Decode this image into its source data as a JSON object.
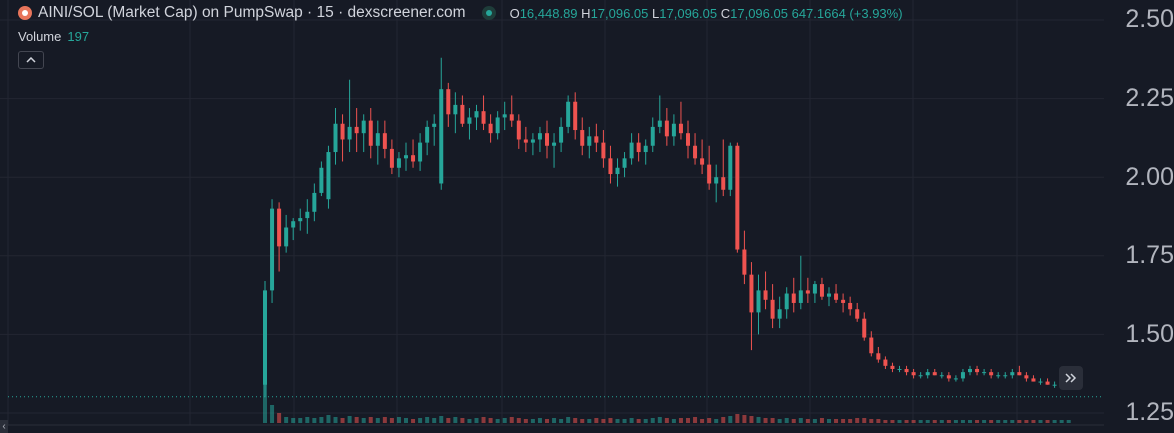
{
  "header": {
    "title": "AINI/SOL (Market Cap) on PumpSwap · 15 · dexscreener.com",
    "ohlc": {
      "o_label": "O",
      "o_value": "16,448.89",
      "h_label": "H",
      "h_value": "17,096.05",
      "l_label": "L",
      "l_value": "17,096.05",
      "c_label": "C",
      "c_value": "17,096.05",
      "change": "647.1664 (+3.93%)"
    }
  },
  "volume": {
    "label": "Volume",
    "value": "197"
  },
  "price_scale": {
    "labels": [
      "2.50",
      "2.25",
      "2.00",
      "1.75",
      "1.50",
      "1.25"
    ],
    "values": [
      2.5,
      2.25,
      2.0,
      1.75,
      1.5,
      1.25
    ]
  },
  "colors": {
    "up": "#26a69a",
    "down": "#ef5350",
    "background": "#161a25",
    "grid": "#232632"
  },
  "icons": {
    "collapse": "chevron-up-icon",
    "scroll": "double-chevron-right-icon",
    "logo": "token-logo-icon"
  },
  "chart_data": {
    "type": "candlestick",
    "y_range": [
      1.25,
      2.5
    ],
    "last_price": 1.34,
    "candles": [
      [
        1.34,
        1.67,
        1.3,
        1.64
      ],
      [
        1.64,
        1.93,
        1.6,
        1.9
      ],
      [
        1.9,
        1.92,
        1.7,
        1.78
      ],
      [
        1.78,
        1.88,
        1.76,
        1.84
      ],
      [
        1.84,
        1.87,
        1.8,
        1.86
      ],
      [
        1.86,
        1.9,
        1.83,
        1.87
      ],
      [
        1.87,
        1.93,
        1.82,
        1.89
      ],
      [
        1.89,
        1.98,
        1.86,
        1.95
      ],
      [
        1.95,
        2.05,
        1.94,
        2.03
      ],
      [
        1.93,
        2.1,
        1.9,
        2.08
      ],
      [
        2.08,
        2.22,
        2.04,
        2.17
      ],
      [
        2.17,
        2.2,
        2.05,
        2.12
      ],
      [
        2.12,
        2.31,
        2.08,
        2.16
      ],
      [
        2.16,
        2.22,
        2.08,
        2.14
      ],
      [
        2.14,
        2.2,
        2.08,
        2.18
      ],
      [
        2.18,
        2.22,
        2.06,
        2.1
      ],
      [
        2.1,
        2.18,
        2.04,
        2.14
      ],
      [
        2.14,
        2.18,
        2.06,
        2.09
      ],
      [
        2.09,
        2.12,
        2.01,
        2.03
      ],
      [
        2.03,
        2.08,
        2.0,
        2.06
      ],
      [
        2.06,
        2.11,
        2.02,
        2.07
      ],
      [
        2.07,
        2.12,
        2.03,
        2.05
      ],
      [
        2.05,
        2.14,
        2.02,
        2.11
      ],
      [
        2.11,
        2.18,
        2.07,
        2.16
      ],
      [
        2.16,
        2.2,
        2.1,
        2.17
      ],
      [
        1.98,
        2.38,
        1.96,
        2.28
      ],
      [
        2.28,
        2.3,
        2.16,
        2.2
      ],
      [
        2.2,
        2.27,
        2.14,
        2.23
      ],
      [
        2.23,
        2.26,
        2.16,
        2.17
      ],
      [
        2.17,
        2.22,
        2.12,
        2.19
      ],
      [
        2.19,
        2.23,
        2.15,
        2.21
      ],
      [
        2.21,
        2.26,
        2.15,
        2.17
      ],
      [
        2.17,
        2.2,
        2.11,
        2.14
      ],
      [
        2.14,
        2.21,
        2.12,
        2.19
      ],
      [
        2.19,
        2.24,
        2.15,
        2.2
      ],
      [
        2.2,
        2.26,
        2.16,
        2.18
      ],
      [
        2.18,
        2.2,
        2.09,
        2.12
      ],
      [
        2.12,
        2.16,
        2.08,
        2.11
      ],
      [
        2.11,
        2.14,
        2.07,
        2.12
      ],
      [
        2.12,
        2.16,
        2.08,
        2.14
      ],
      [
        2.14,
        2.18,
        2.06,
        2.1
      ],
      [
        2.1,
        2.14,
        2.03,
        2.11
      ],
      [
        2.11,
        2.19,
        2.08,
        2.16
      ],
      [
        2.16,
        2.26,
        2.14,
        2.24
      ],
      [
        2.24,
        2.27,
        2.12,
        2.15
      ],
      [
        2.15,
        2.19,
        2.07,
        2.1
      ],
      [
        2.1,
        2.16,
        2.06,
        2.13
      ],
      [
        2.13,
        2.17,
        2.08,
        2.11
      ],
      [
        2.11,
        2.15,
        2.03,
        2.06
      ],
      [
        2.06,
        2.1,
        1.98,
        2.01
      ],
      [
        2.01,
        2.06,
        1.97,
        2.03
      ],
      [
        2.03,
        2.08,
        2.0,
        2.06
      ],
      [
        2.06,
        2.14,
        2.04,
        2.11
      ],
      [
        2.11,
        2.14,
        2.05,
        2.08
      ],
      [
        2.08,
        2.12,
        2.04,
        2.1
      ],
      [
        2.1,
        2.19,
        2.08,
        2.16
      ],
      [
        2.16,
        2.26,
        2.14,
        2.18
      ],
      [
        2.18,
        2.22,
        2.1,
        2.13
      ],
      [
        2.13,
        2.2,
        2.1,
        2.17
      ],
      [
        2.17,
        2.24,
        2.12,
        2.14
      ],
      [
        2.14,
        2.18,
        2.06,
        2.1
      ],
      [
        2.1,
        2.14,
        2.04,
        2.06
      ],
      [
        2.06,
        2.12,
        2.01,
        2.04
      ],
      [
        2.04,
        2.1,
        1.96,
        1.98
      ],
      [
        1.98,
        2.04,
        1.92,
        2.0
      ],
      [
        2.0,
        2.12,
        1.94,
        1.96
      ],
      [
        1.96,
        2.11,
        1.94,
        2.1
      ],
      [
        2.1,
        2.11,
        1.76,
        1.77
      ],
      [
        1.77,
        1.83,
        1.66,
        1.69
      ],
      [
        1.69,
        1.73,
        1.45,
        1.57
      ],
      [
        1.57,
        1.69,
        1.5,
        1.64
      ],
      [
        1.64,
        1.7,
        1.58,
        1.61
      ],
      [
        1.61,
        1.66,
        1.52,
        1.55
      ],
      [
        1.55,
        1.62,
        1.52,
        1.58
      ],
      [
        1.58,
        1.65,
        1.55,
        1.63
      ],
      [
        1.63,
        1.68,
        1.57,
        1.6
      ],
      [
        1.6,
        1.75,
        1.58,
        1.64
      ],
      [
        1.64,
        1.68,
        1.6,
        1.63
      ],
      [
        1.63,
        1.67,
        1.6,
        1.66
      ],
      [
        1.66,
        1.68,
        1.61,
        1.62
      ],
      [
        1.62,
        1.65,
        1.59,
        1.63
      ],
      [
        1.63,
        1.66,
        1.6,
        1.61
      ],
      [
        1.61,
        1.63,
        1.57,
        1.6
      ],
      [
        1.6,
        1.62,
        1.56,
        1.58
      ],
      [
        1.58,
        1.6,
        1.54,
        1.55
      ],
      [
        1.55,
        1.57,
        1.48,
        1.49
      ],
      [
        1.49,
        1.51,
        1.43,
        1.44
      ],
      [
        1.44,
        1.46,
        1.41,
        1.42
      ],
      [
        1.42,
        1.43,
        1.39,
        1.4
      ],
      [
        1.4,
        1.41,
        1.38,
        1.39
      ],
      [
        1.39,
        1.4,
        1.38,
        1.39
      ],
      [
        1.39,
        1.4,
        1.37,
        1.38
      ],
      [
        1.38,
        1.39,
        1.36,
        1.37
      ],
      [
        1.37,
        1.38,
        1.36,
        1.37
      ],
      [
        1.37,
        1.39,
        1.36,
        1.38
      ],
      [
        1.38,
        1.39,
        1.37,
        1.37
      ],
      [
        1.37,
        1.38,
        1.36,
        1.37
      ],
      [
        1.37,
        1.38,
        1.35,
        1.36
      ],
      [
        1.36,
        1.37,
        1.35,
        1.36
      ],
      [
        1.36,
        1.39,
        1.35,
        1.38
      ],
      [
        1.38,
        1.4,
        1.37,
        1.39
      ],
      [
        1.39,
        1.4,
        1.37,
        1.38
      ],
      [
        1.38,
        1.39,
        1.37,
        1.38
      ],
      [
        1.38,
        1.39,
        1.36,
        1.37
      ],
      [
        1.37,
        1.38,
        1.36,
        1.37
      ],
      [
        1.37,
        1.38,
        1.36,
        1.37
      ],
      [
        1.37,
        1.39,
        1.36,
        1.38
      ],
      [
        1.38,
        1.4,
        1.37,
        1.37
      ],
      [
        1.37,
        1.38,
        1.35,
        1.36
      ],
      [
        1.36,
        1.37,
        1.35,
        1.35
      ],
      [
        1.35,
        1.36,
        1.34,
        1.35
      ],
      [
        1.35,
        1.36,
        1.34,
        1.34
      ],
      [
        1.34,
        1.35,
        1.33,
        1.34
      ],
      [
        1.34,
        1.35,
        1.33,
        1.34
      ],
      [
        1.34,
        1.35,
        1.33,
        1.34
      ]
    ],
    "volumes": [
      60,
      18,
      10,
      6,
      5,
      5,
      6,
      5,
      6,
      8,
      6,
      5,
      7,
      6,
      5,
      6,
      5,
      6,
      5,
      6,
      5,
      4,
      5,
      6,
      5,
      7,
      5,
      6,
      5,
      4,
      5,
      6,
      5,
      4,
      5,
      6,
      5,
      4,
      4,
      5,
      4,
      5,
      4,
      6,
      5,
      4,
      4,
      5,
      4,
      5,
      4,
      4,
      5,
      4,
      4,
      5,
      6,
      5,
      4,
      5,
      5,
      6,
      4,
      5,
      4,
      6,
      7,
      9,
      8,
      7,
      6,
      5,
      5,
      4,
      5,
      4,
      5,
      4,
      4,
      5,
      4,
      4,
      4,
      4,
      5,
      5,
      4,
      4,
      3,
      3,
      3,
      3,
      3,
      3,
      3,
      3,
      3,
      3,
      3,
      3,
      3,
      3,
      3,
      3,
      3,
      3,
      3,
      3,
      3,
      3,
      3,
      3,
      3,
      3,
      3
    ]
  }
}
